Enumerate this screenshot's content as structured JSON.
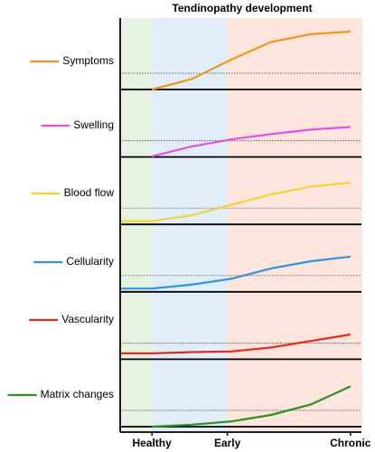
{
  "chart_data": {
    "type": "line",
    "title": "Tendinopathy development",
    "x": [
      -0.8,
      0,
      1,
      2,
      3,
      4,
      5
    ],
    "xlim": [
      -0.8,
      5.3
    ],
    "xticks": [
      {
        "value": 0,
        "label": "Healthy"
      },
      {
        "value": 1.9,
        "label": "Early"
      },
      {
        "value": 5,
        "label": "Chronic"
      }
    ],
    "ylim": [
      0,
      1
    ],
    "reference_line": 0.25,
    "band_colors": [
      "#e6f3e3",
      "#e1eefa",
      "#fde4dd"
    ],
    "series": [
      {
        "name": "Symptoms",
        "color": "#f0961e",
        "values": [
          null,
          0,
          0.16,
          0.46,
          0.73,
          0.85,
          0.89
        ]
      },
      {
        "name": "Swelling",
        "color": "#e84de6",
        "values": [
          null,
          0.01,
          0.16,
          0.27,
          0.35,
          0.42,
          0.46
        ]
      },
      {
        "name": "Blood flow",
        "color": "#f2d43a",
        "values": [
          0.05,
          0.05,
          0.14,
          0.3,
          0.46,
          0.58,
          0.64
        ]
      },
      {
        "name": "Cellularity",
        "color": "#2f93e0",
        "values": [
          0.05,
          0.05,
          0.11,
          0.2,
          0.36,
          0.47,
          0.54
        ]
      },
      {
        "name": "Vascularity",
        "color": "#e52a1c",
        "values": [
          0.09,
          0.09,
          0.11,
          0.12,
          0.18,
          0.28,
          0.38
        ]
      },
      {
        "name": "Matrix changes",
        "color": "#2b8f22",
        "values": [
          null,
          0,
          0.03,
          0.08,
          0.18,
          0.34,
          0.62
        ]
      }
    ]
  }
}
